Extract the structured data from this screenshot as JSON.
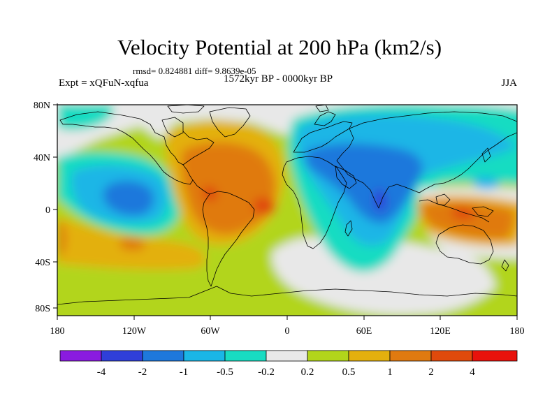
{
  "title": "Velocity Potential at 200 hPa (km2/s)",
  "stats": "rmsd= 0.824881 diff= 9.8639e-05",
  "experiment": "Expt = xQFuN-xqfua",
  "period": "1572kyr BP - 0000kyr BP",
  "season": "JJA",
  "y_axis_labels": [
    "80N",
    "40N",
    "0",
    "40S",
    "80S"
  ],
  "x_axis_labels": [
    "180",
    "120W",
    "60W",
    "0",
    "60E",
    "120E",
    "180"
  ],
  "colorbar": {
    "labels": [
      "-4",
      "-2",
      "-1",
      "-0.5",
      "-0.2",
      "0.2",
      "0.5",
      "1",
      "2",
      "4"
    ],
    "colors": [
      "#8a1be0",
      "#2f3fd9",
      "#1e78dc",
      "#1ab6e6",
      "#18dcc2",
      "#e8e8e8",
      "#b2d51b",
      "#e3b00e",
      "#e07a10",
      "#e04a0c",
      "#e8120c"
    ]
  },
  "field_colors": {
    "neg4": "#2f3fd9",
    "neg2": "#1e78dc",
    "neg1": "#1ab6e6",
    "neg05": "#18dcc2",
    "neutral": "#e8e8e8",
    "pos02": "#b2d51b",
    "pos05": "#e3b00e",
    "pos1": "#e07a10",
    "pos2": "#e04a0c"
  }
}
